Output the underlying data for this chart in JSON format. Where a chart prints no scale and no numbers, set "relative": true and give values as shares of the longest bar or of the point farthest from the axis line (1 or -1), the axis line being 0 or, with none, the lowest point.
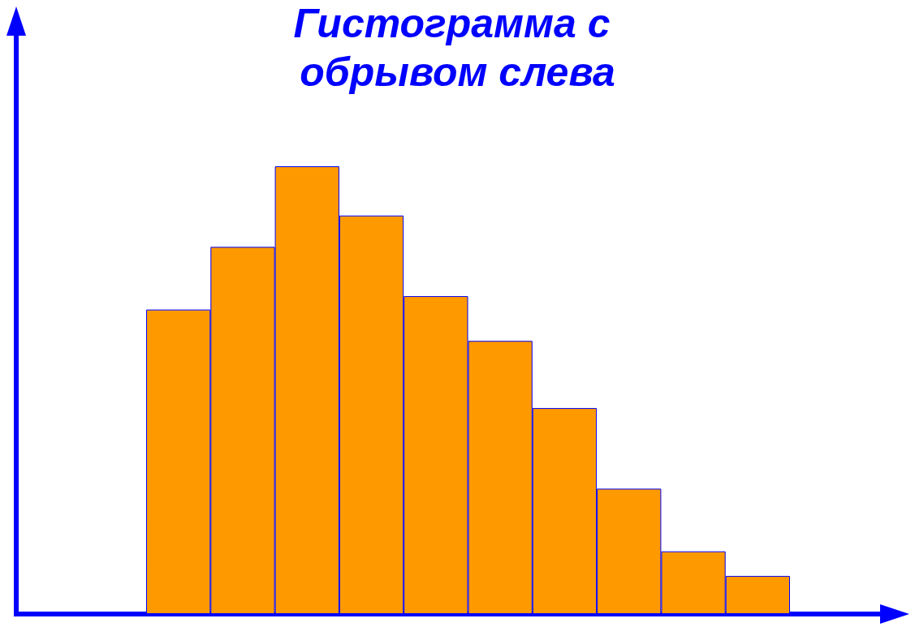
{
  "chart_data": {
    "type": "bar",
    "title": "Гистограмма с обрывом слева",
    "relative": true,
    "categories": [
      null,
      null,
      null,
      null,
      null,
      null,
      null,
      null,
      null,
      null
    ],
    "values": [
      0.68,
      0.82,
      1,
      0.89,
      0.71,
      0.61,
      0.46,
      0.28,
      0.14,
      0.085
    ],
    "color": "#ff9900"
  }
}
